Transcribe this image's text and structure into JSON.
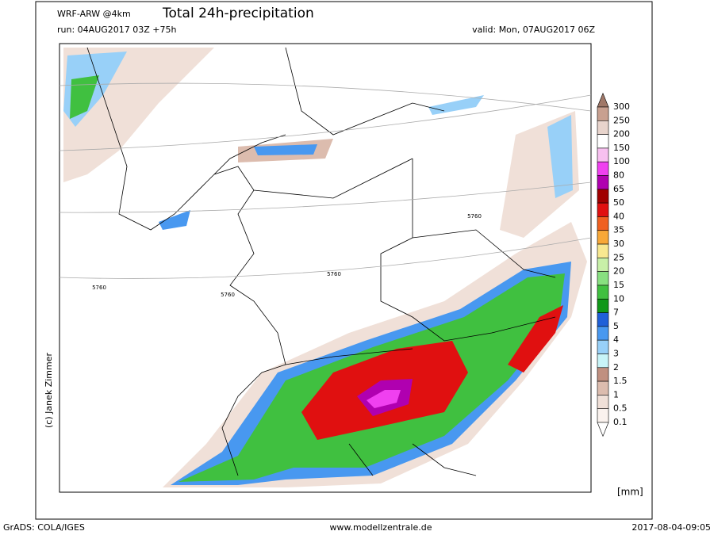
{
  "header": {
    "model": "WRF-ARW @4km",
    "title": "Total 24h-precipitation",
    "run": "run: 04AUG2017 03Z +75h",
    "valid": "valid: Mon, 07AUG2017 06Z"
  },
  "colorbar": {
    "levels": [
      300,
      250,
      200,
      150,
      100,
      80,
      65,
      50,
      40,
      35,
      30,
      25,
      20,
      15,
      10,
      7,
      5,
      4,
      3,
      2,
      1.5,
      1,
      0.5,
      0.1
    ],
    "colors": [
      "#a07868",
      "#c8a090",
      "#e8d4cc",
      "#ffffff",
      "#f8c0f0",
      "#f040f0",
      "#b000b0",
      "#a00000",
      "#e01010",
      "#f06020",
      "#f8a838",
      "#f8e890",
      "#c8f0a8",
      "#88e080",
      "#40c040",
      "#109818",
      "#2060d8",
      "#4898f0",
      "#98d0f8",
      "#c8f4f8",
      "#c09080",
      "#dcbcae",
      "#f0e0d8",
      "#faf2ee",
      "#ffffff"
    ],
    "unit": "[mm]"
  },
  "map": {
    "contour_labels": [
      "5760",
      "5760",
      "5760",
      "5760"
    ]
  },
  "credit": "(c) Janek Zimmer",
  "footer": {
    "left": "GrADS: COLA/IGES",
    "center": "www.modellzentrale.de",
    "right": "2017-08-04-09:05"
  }
}
